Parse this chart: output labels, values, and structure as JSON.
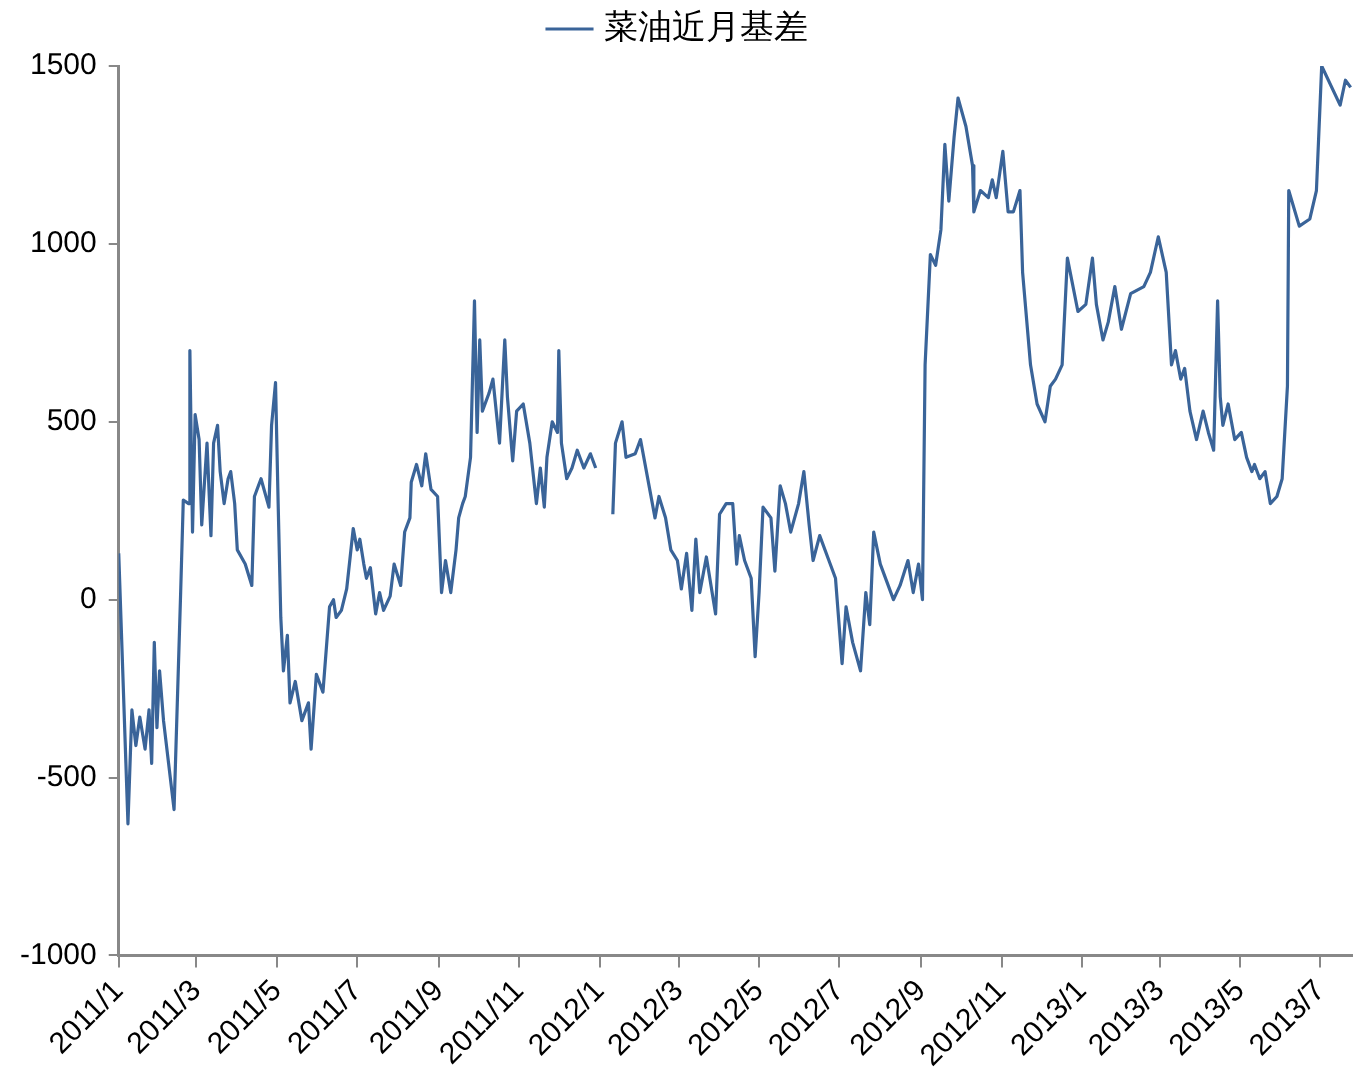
{
  "chart_data": {
    "type": "line",
    "legend": "top",
    "grid": false,
    "marker": "none",
    "line_style": "solid",
    "xlim": [
      "2011-01-01",
      "2013-07-25"
    ],
    "ylim": [
      -1000,
      1500
    ],
    "yticks": [
      -1000,
      -500,
      0,
      500,
      1000,
      1500
    ],
    "xticks": [
      {
        "value": "2011-01-01",
        "label": "2011/1"
      },
      {
        "value": "2011-03-01",
        "label": "2011/3"
      },
      {
        "value": "2011-05-01",
        "label": "2011/5"
      },
      {
        "value": "2011-07-01",
        "label": "2011/7"
      },
      {
        "value": "2011-09-01",
        "label": "2011/9"
      },
      {
        "value": "2011-11-01",
        "label": "2011/11"
      },
      {
        "value": "2012-01-01",
        "label": "2012/1"
      },
      {
        "value": "2012-03-01",
        "label": "2012/3"
      },
      {
        "value": "2012-05-01",
        "label": "2012/5"
      },
      {
        "value": "2012-07-01",
        "label": "2012/7"
      },
      {
        "value": "2012-09-01",
        "label": "2012/9"
      },
      {
        "value": "2012-11-01",
        "label": "2012/11"
      },
      {
        "value": "2013-01-01",
        "label": "2013/1"
      },
      {
        "value": "2013-03-01",
        "label": "2013/3"
      },
      {
        "value": "2013-05-01",
        "label": "2013/5"
      },
      {
        "value": "2013-07-01",
        "label": "2013/7"
      }
    ],
    "x": [
      "2011-01-01",
      "2011-01-08",
      "2011-01-11",
      "2011-01-14",
      "2011-01-17",
      "2011-01-21",
      "2011-01-24",
      "2011-01-26",
      "2011-01-28",
      "2011-01-30",
      "2011-02-01",
      "2011-02-04",
      "2011-02-12",
      "2011-02-17",
      "2011-02-19",
      "2011-02-23",
      "2011-02-24",
      "2011-02-26",
      "2011-02-28",
      "2011-03-03",
      "2011-03-05",
      "2011-03-09",
      "2011-03-12",
      "2011-03-14",
      "2011-03-17",
      "2011-03-19",
      "2011-03-22",
      "2011-03-25",
      "2011-03-27",
      "2011-03-30",
      "2011-04-01",
      "2011-04-07",
      "2011-04-12",
      "2011-04-14",
      "2011-04-19",
      "2011-04-25",
      "2011-04-27",
      "2011-04-30",
      "2011-05-02",
      "2011-05-04",
      "2011-05-06",
      "2011-05-09",
      "2011-05-11",
      "2011-05-15",
      "2011-05-20",
      "2011-05-25",
      "2011-05-27",
      "2011-05-31",
      "2011-06-05",
      "2011-06-10",
      "2011-06-13",
      "2011-06-15",
      "2011-06-19",
      "2011-06-23",
      "2011-06-28",
      "2011-07-01",
      "2011-07-03",
      "2011-07-06",
      "2011-07-08",
      "2011-07-11",
      "2011-07-15",
      "2011-07-18",
      "2011-07-21",
      "2011-07-26",
      "2011-07-29",
      "2011-08-03",
      "2011-08-06",
      "2011-08-10",
      "2011-08-11",
      "2011-08-15",
      "2011-08-19",
      "2011-08-22",
      "2011-08-26",
      "2011-08-31",
      "2011-09-03",
      "2011-09-06",
      "2011-09-10",
      "2011-09-14",
      "2011-09-16",
      "2011-09-19",
      "2011-09-21",
      "2011-09-25",
      "2011-09-28",
      "2011-09-30",
      "2011-10-02",
      "2011-10-04",
      "2011-10-09",
      "2011-10-12",
      "2011-10-17",
      "2011-10-21",
      "2011-10-23",
      "2011-10-27",
      "2011-10-30",
      "2011-11-04",
      "2011-11-09",
      "2011-11-14",
      "2011-11-17",
      "2011-11-20",
      "2011-11-22",
      "2011-11-26",
      "2011-11-30",
      "2011-12-01",
      "2011-12-03",
      "2011-12-07",
      "2011-12-11",
      "2011-12-15",
      "2011-12-20",
      "2011-12-25",
      "2011-12-29",
      "2012-01-05",
      "2012-01-11",
      "2012-01-13",
      "2012-01-18",
      "2012-01-21",
      "2012-01-28",
      "2012-02-01",
      "2012-02-08",
      "2012-02-12",
      "2012-02-15",
      "2012-02-20",
      "2012-02-24",
      "2012-02-29",
      "2012-03-03",
      "2012-03-07",
      "2012-03-11",
      "2012-03-14",
      "2012-03-17",
      "2012-03-22",
      "2012-03-29",
      "2012-04-01",
      "2012-04-06",
      "2012-04-11",
      "2012-04-14",
      "2012-04-16",
      "2012-04-20",
      "2012-04-25",
      "2012-04-28",
      "2012-05-01",
      "2012-05-04",
      "2012-05-10",
      "2012-05-13",
      "2012-05-17",
      "2012-05-21",
      "2012-05-25",
      "2012-05-31",
      "2012-06-04",
      "2012-06-08",
      "2012-06-11",
      "2012-06-16",
      "2012-06-23",
      "2012-06-28",
      "2012-07-03",
      "2012-07-06",
      "2012-07-11",
      "2012-07-17",
      "2012-07-21",
      "2012-07-24",
      "2012-07-27",
      "2012-08-01",
      "2012-08-06",
      "2012-08-11",
      "2012-08-16",
      "2012-08-22",
      "2012-08-26",
      "2012-08-30",
      "2012-09-02",
      "2012-09-04",
      "2012-09-08",
      "2012-09-12",
      "2012-09-16",
      "2012-09-19",
      "2012-09-22",
      "2012-09-26",
      "2012-09-29",
      "2012-10-05",
      "2012-10-10",
      "2012-10-11",
      "2012-10-16",
      "2012-10-22",
      "2012-10-25",
      "2012-10-28",
      "2012-11-02",
      "2012-11-06",
      "2012-11-10",
      "2012-11-15",
      "2012-11-17",
      "2012-11-23",
      "2012-11-28",
      "2012-12-04",
      "2012-12-08",
      "2012-12-12",
      "2012-12-17",
      "2012-12-21",
      "2012-12-29",
      "2013-01-04",
      "2013-01-09",
      "2013-01-12",
      "2013-01-17",
      "2013-01-21",
      "2013-01-26",
      "2013-01-31",
      "2013-02-07",
      "2013-02-17",
      "2013-02-22",
      "2013-02-28",
      "2013-03-03",
      "2013-03-06",
      "2013-03-10",
      "2013-03-13",
      "2013-03-17",
      "2013-03-20",
      "2013-03-24",
      "2013-03-29",
      "2013-04-03",
      "2013-04-07",
      "2013-04-11",
      "2013-04-14",
      "2013-04-16",
      "2013-04-18",
      "2013-04-22",
      "2013-04-27",
      "2013-05-02",
      "2013-05-06",
      "2013-05-10",
      "2013-05-12",
      "2013-05-16",
      "2013-05-20",
      "2013-05-24",
      "2013-05-29",
      "2013-06-02",
      "2013-06-06",
      "2013-06-07",
      "2013-06-15",
      "2013-06-23",
      "2013-06-28",
      "2013-07-02",
      "2013-07-16",
      "2013-07-20",
      "2013-07-24"
    ],
    "series": [
      {
        "name": "菜油近月基差",
        "color": "#3a6499",
        "values": [
          130,
          -630,
          -310,
          -410,
          -330,
          -420,
          -310,
          -460,
          -120,
          -360,
          -200,
          -340,
          -590,
          20,
          280,
          270,
          700,
          190,
          520,
          450,
          210,
          440,
          180,
          440,
          490,
          360,
          270,
          340,
          360,
          270,
          140,
          100,
          40,
          290,
          340,
          260,
          490,
          610,
          270,
          -50,
          -200,
          -100,
          -290,
          -230,
          -340,
          -290,
          -420,
          -210,
          -260,
          -20,
          0,
          -50,
          -30,
          30,
          200,
          140,
          170,
          100,
          60,
          90,
          -40,
          20,
          -30,
          10,
          100,
          40,
          190,
          230,
          330,
          380,
          320,
          410,
          310,
          290,
          20,
          110,
          20,
          140,
          230,
          270,
          290,
          400,
          840,
          470,
          730,
          530,
          580,
          620,
          440,
          730,
          570,
          390,
          530,
          550,
          440,
          270,
          370,
          260,
          400,
          500,
          470,
          700,
          440,
          340,
          370,
          420,
          370,
          410,
          370,
          null,
          240,
          440,
          500,
          400,
          410,
          450,
          310,
          230,
          290,
          230,
          140,
          110,
          30,
          130,
          -30,
          170,
          20,
          120,
          -40,
          240,
          270,
          270,
          100,
          180,
          110,
          60,
          -160,
          20,
          260,
          230,
          80,
          320,
          270,
          190,
          270,
          360,
          210,
          110,
          180,
          110,
          60,
          -180,
          -20,
          -120,
          -200,
          20,
          -70,
          190,
          100,
          50,
          0,
          40,
          110,
          20,
          100,
          0,
          660,
          970,
          940,
          1040,
          1280,
          1120,
          1300,
          1410,
          1330,
          1220,
          1090,
          1150,
          1130,
          1180,
          1130,
          1260,
          1090,
          1090,
          1150,
          920,
          660,
          550,
          500,
          600,
          620,
          660,
          960,
          810,
          830,
          960,
          830,
          730,
          780,
          880,
          760,
          860,
          880,
          920,
          1020,
          970,
          920,
          660,
          700,
          620,
          650,
          530,
          450,
          530,
          470,
          420,
          840,
          570,
          490,
          550,
          450,
          470,
          400,
          360,
          380,
          340,
          360,
          270,
          290,
          340,
          600,
          1150,
          1050,
          1070,
          1150,
          1500,
          1390,
          1460,
          1440
        ]
      }
    ]
  }
}
